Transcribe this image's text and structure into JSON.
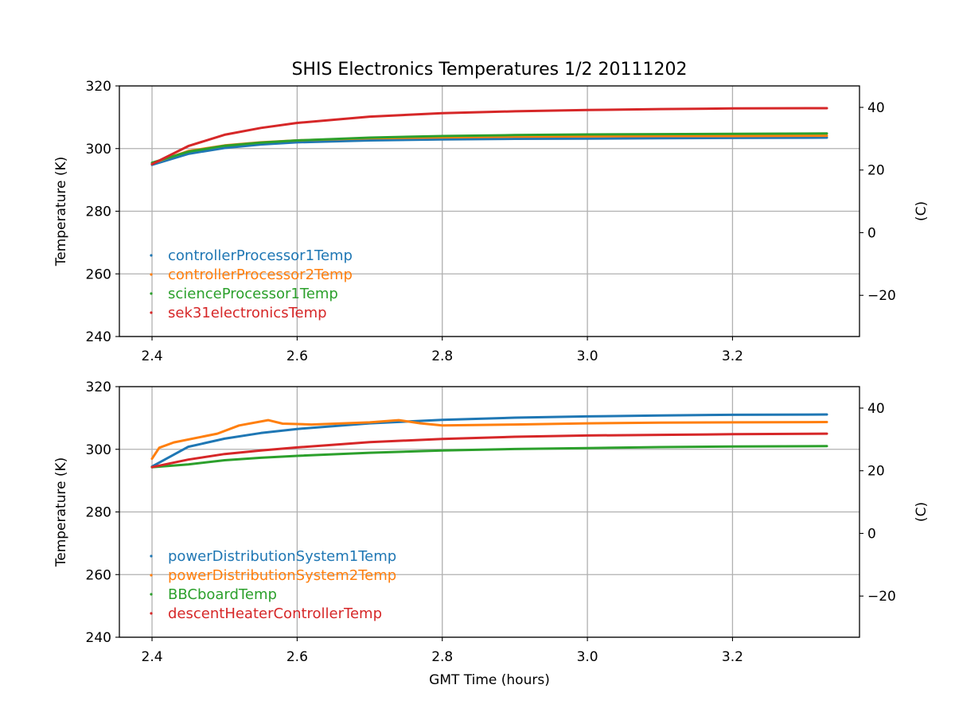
{
  "figure": {
    "title": "SHIS Electronics Temperatures 1/2 20111202",
    "xlabel": "GMT Time (hours)"
  },
  "chart_data": [
    {
      "type": "line",
      "title": "SHIS Electronics Temperatures 1/2 20111202",
      "xlabel": "",
      "ylabel": "Temperature (K)",
      "y2label": "(C)",
      "xlim": [
        2.355,
        3.375
      ],
      "ylim": [
        240,
        320
      ],
      "y2lim": [
        -33.15,
        46.85
      ],
      "xticks": [
        2.4,
        2.6,
        2.8,
        3.0,
        3.2
      ],
      "xtick_labels": [
        "2.4",
        "2.6",
        "2.8",
        "3.0",
        "3.2"
      ],
      "yticks": [
        240,
        260,
        280,
        300,
        320
      ],
      "ytick_labels": [
        "240",
        "260",
        "280",
        "300",
        "320"
      ],
      "y2ticks": [
        -20,
        0,
        20,
        40
      ],
      "y2tick_labels": [
        "−20",
        "0",
        "20",
        "40"
      ],
      "grid": true,
      "legend_placement": "lower-left",
      "series": [
        {
          "name": "controllerProcessor1Temp",
          "color": "#1f77b4",
          "x": [
            2.4,
            2.45,
            2.5,
            2.55,
            2.6,
            2.7,
            2.8,
            2.9,
            3.0,
            3.1,
            3.2,
            3.33
          ],
          "values": [
            294.8,
            298.3,
            300.2,
            301.3,
            302.0,
            302.6,
            302.9,
            303.1,
            303.2,
            303.3,
            303.4,
            303.5
          ]
        },
        {
          "name": "controllerProcessor2Temp",
          "color": "#ff7f0e",
          "x": [
            2.4,
            2.45,
            2.5,
            2.55,
            2.6,
            2.7,
            2.8,
            2.9,
            3.0,
            3.1,
            3.2,
            3.33
          ],
          "values": [
            295.3,
            299.2,
            301.0,
            302.0,
            302.6,
            303.3,
            303.6,
            303.8,
            303.9,
            304.0,
            304.0,
            304.1
          ]
        },
        {
          "name": "scienceProcessor1Temp",
          "color": "#2ca02c",
          "x": [
            2.4,
            2.45,
            2.5,
            2.55,
            2.6,
            2.7,
            2.8,
            2.9,
            3.0,
            3.1,
            3.2,
            3.33
          ],
          "values": [
            295.5,
            299.0,
            300.9,
            301.9,
            302.6,
            303.5,
            304.0,
            304.3,
            304.5,
            304.6,
            304.7,
            304.8
          ]
        },
        {
          "name": "sek31electronicsTemp",
          "color": "#d62728",
          "x": [
            2.4,
            2.45,
            2.5,
            2.55,
            2.6,
            2.7,
            2.8,
            2.9,
            3.0,
            3.1,
            3.2,
            3.33
          ],
          "values": [
            295.0,
            300.8,
            304.4,
            306.6,
            308.2,
            310.2,
            311.3,
            311.9,
            312.3,
            312.6,
            312.8,
            312.9
          ]
        }
      ]
    },
    {
      "type": "line",
      "title": "",
      "xlabel": "GMT Time (hours)",
      "ylabel": "Temperature (K)",
      "y2label": "(C)",
      "xlim": [
        2.355,
        3.375
      ],
      "ylim": [
        240,
        320
      ],
      "y2lim": [
        -33.15,
        46.85
      ],
      "xticks": [
        2.4,
        2.6,
        2.8,
        3.0,
        3.2
      ],
      "xtick_labels": [
        "2.4",
        "2.6",
        "2.8",
        "3.0",
        "3.2"
      ],
      "yticks": [
        240,
        260,
        280,
        300,
        320
      ],
      "ytick_labels": [
        "240",
        "260",
        "280",
        "300",
        "320"
      ],
      "y2ticks": [
        -20,
        0,
        20,
        40
      ],
      "y2tick_labels": [
        "−20",
        "0",
        "20",
        "40"
      ],
      "grid": true,
      "legend_placement": "lower-left",
      "series": [
        {
          "name": "powerDistributionSystem1Temp",
          "color": "#1f77b4",
          "x": [
            2.4,
            2.45,
            2.5,
            2.55,
            2.6,
            2.7,
            2.8,
            2.9,
            3.0,
            3.1,
            3.2,
            3.33
          ],
          "values": [
            294.5,
            300.8,
            303.4,
            305.2,
            306.5,
            308.3,
            309.4,
            310.1,
            310.5,
            310.8,
            311.0,
            311.1
          ]
        },
        {
          "name": "powerDistributionSystem2Temp",
          "color": "#ff7f0e",
          "x": [
            2.4,
            2.41,
            2.43,
            2.49,
            2.52,
            2.56,
            2.58,
            2.62,
            2.7,
            2.74,
            2.77,
            2.8,
            2.9,
            3.0,
            3.1,
            3.2,
            3.33
          ],
          "values": [
            297.0,
            300.5,
            302.2,
            305.0,
            307.6,
            309.3,
            308.2,
            307.9,
            308.6,
            309.3,
            308.3,
            307.6,
            307.9,
            308.3,
            308.5,
            308.6,
            308.7
          ]
        },
        {
          "name": "BBCboardTemp",
          "color": "#2ca02c",
          "x": [
            2.4,
            2.45,
            2.5,
            2.55,
            2.6,
            2.7,
            2.8,
            2.9,
            3.0,
            3.1,
            3.2,
            3.33
          ],
          "values": [
            294.3,
            295.2,
            296.5,
            297.3,
            297.9,
            298.9,
            299.6,
            300.1,
            300.4,
            300.7,
            300.9,
            301.0
          ]
        },
        {
          "name": "descentHeaterControllerTemp",
          "color": "#d62728",
          "x": [
            2.4,
            2.45,
            2.5,
            2.55,
            2.6,
            2.7,
            2.8,
            2.9,
            3.0,
            3.1,
            3.2,
            3.33
          ],
          "values": [
            294.3,
            296.7,
            298.5,
            299.6,
            300.6,
            302.3,
            303.3,
            304.0,
            304.4,
            304.6,
            304.8,
            305.0
          ]
        }
      ]
    }
  ]
}
